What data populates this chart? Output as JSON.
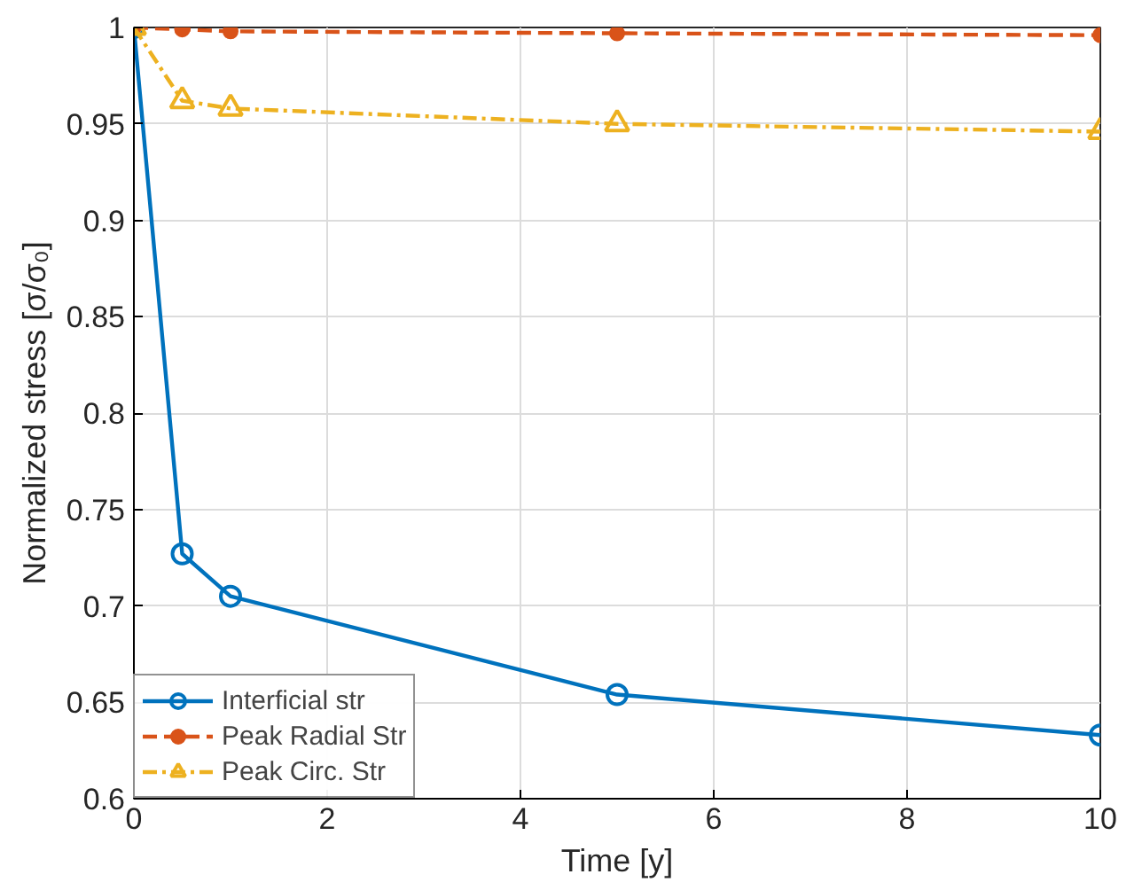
{
  "chart_data": {
    "type": "line",
    "xlabel": "Time [y]",
    "ylabel": "Normalized stress [σ/σ₀]",
    "x": [
      0,
      0.5,
      1,
      5,
      10
    ],
    "xlim": [
      0,
      10
    ],
    "xticks": [
      0,
      2,
      4,
      6,
      8,
      10
    ],
    "ylim": [
      0.6,
      1
    ],
    "yticks": [
      0.6,
      0.65,
      0.7,
      0.75,
      0.8,
      0.85,
      0.9,
      0.95,
      1
    ],
    "grid": true,
    "legend": "bottom left",
    "series": [
      {
        "name": "Interficial str",
        "color": "#0072bd",
        "marker": "circle",
        "line_style": "solid",
        "values": [
          1,
          0.727,
          0.705,
          0.654,
          0.633
        ]
      },
      {
        "name": "Peak Radial Str",
        "color": "#d95319",
        "marker": "dot",
        "line_style": "dashed",
        "values": [
          1,
          0.999,
          0.998,
          0.997,
          0.996
        ]
      },
      {
        "name": "Peak Circ. Str",
        "color": "#edb120",
        "marker": "triangle",
        "line_style": "dashdot",
        "values": [
          1,
          0.962,
          0.958,
          0.95,
          0.946
        ]
      }
    ]
  }
}
